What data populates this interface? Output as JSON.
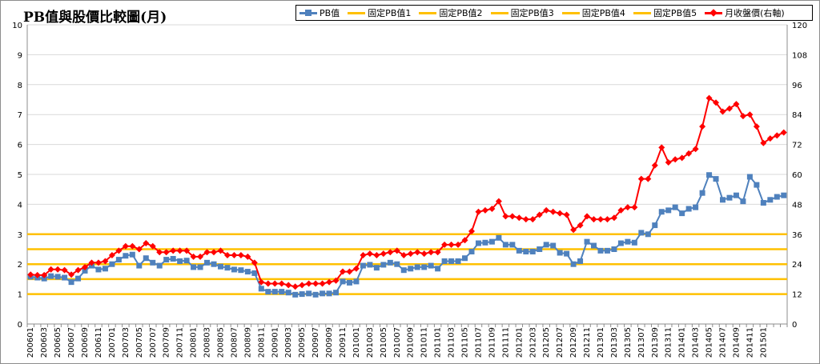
{
  "title": "PB值與股價比較圖(月)",
  "colors": {
    "pb": "#4f81bd",
    "price": "#ff0000",
    "fixed": "#ffc000",
    "grid": "#d9d9d9"
  },
  "legend": [
    {
      "label": "PB值",
      "kind": "line-square",
      "color": "#4f81bd"
    },
    {
      "label": "固定PB值1",
      "kind": "line",
      "color": "#ffc000"
    },
    {
      "label": "固定PB值2",
      "kind": "line",
      "color": "#ffc000"
    },
    {
      "label": "固定PB值3",
      "kind": "line",
      "color": "#ffc000"
    },
    {
      "label": "固定PB值4",
      "kind": "line",
      "color": "#ffc000"
    },
    {
      "label": "固定PB值5",
      "kind": "line",
      "color": "#ffc000"
    },
    {
      "label": "月收盤價(右軸)",
      "kind": "line-diamond",
      "color": "#ff0000"
    }
  ],
  "chart_data": {
    "type": "line",
    "title": "PB值與股價比較圖(月)",
    "y_left": {
      "min": 0,
      "max": 10,
      "ticks": [
        "0",
        "1",
        "2",
        "3",
        "4",
        "5",
        "6",
        "7",
        "8",
        "9",
        "10"
      ]
    },
    "y_right": {
      "min": 0,
      "max": 120,
      "ticks": [
        "0",
        "12",
        "24",
        "36",
        "48",
        "60",
        "72",
        "84",
        "96",
        "108",
        "120"
      ]
    },
    "x_tick_labels": [
      "200601",
      "200603",
      "200605",
      "200607",
      "200609",
      "200611",
      "200701",
      "200703",
      "200705",
      "200707",
      "200709",
      "200711",
      "200801",
      "200803",
      "200805",
      "200807",
      "200809",
      "200811",
      "200901",
      "200903",
      "200905",
      "200907",
      "200909",
      "200911",
      "201001",
      "201003",
      "201005",
      "201007",
      "201009",
      "201011",
      "201101",
      "201103",
      "201105",
      "201107",
      "201109",
      "201111",
      "201201",
      "201203",
      "201205",
      "201207",
      "201209",
      "201211",
      "201301",
      "201303",
      "201305",
      "201307",
      "201309",
      "201311",
      "201401",
      "201403",
      "201405",
      "201407",
      "201409",
      "201411",
      "201501"
    ],
    "series": [
      {
        "name": "PB值",
        "axis": "left",
        "values": [
          1.58,
          1.55,
          1.52,
          1.6,
          1.58,
          1.55,
          1.4,
          1.52,
          1.78,
          1.95,
          1.82,
          1.85,
          2.0,
          2.15,
          2.28,
          2.32,
          1.95,
          2.2,
          2.05,
          1.95,
          2.15,
          2.18,
          2.1,
          2.12,
          1.9,
          1.9,
          2.05,
          2.0,
          1.92,
          1.88,
          1.82,
          1.8,
          1.75,
          1.7,
          1.18,
          1.08,
          1.08,
          1.08,
          1.05,
          0.98,
          1.0,
          1.02,
          0.98,
          1.02,
          1.02,
          1.05,
          1.42,
          1.38,
          1.42,
          1.95,
          1.98,
          1.88,
          1.98,
          2.05,
          2.0,
          1.8,
          1.85,
          1.9,
          1.9,
          1.95,
          1.85,
          2.1,
          2.1,
          2.1,
          2.2,
          2.42,
          2.7,
          2.72,
          2.75,
          2.88,
          2.65,
          2.65,
          2.45,
          2.42,
          2.42,
          2.5,
          2.65,
          2.62,
          2.38,
          2.35,
          2.0,
          2.1,
          2.75,
          2.62,
          2.45,
          2.45,
          2.5,
          2.7,
          2.75,
          2.72,
          3.05,
          3.0,
          3.3,
          3.75,
          3.8,
          3.9,
          3.7,
          3.85,
          3.9,
          4.38,
          4.98,
          4.85,
          4.15,
          4.22,
          4.3,
          4.1,
          4.92,
          4.65,
          4.05,
          4.15,
          4.25,
          4.3
        ]
      },
      {
        "name": "固定PB值1",
        "axis": "left",
        "constant": 1.0
      },
      {
        "name": "固定PB值2",
        "axis": "left",
        "constant": 1.5
      },
      {
        "name": "固定PB值3",
        "axis": "left",
        "constant": 2.0
      },
      {
        "name": "固定PB值4",
        "axis": "left",
        "constant": 2.5
      },
      {
        "name": "固定PB值5",
        "axis": "left",
        "constant": 3.0
      },
      {
        "name": "月收盤價(右軸)",
        "axis": "right",
        "values": [
          19.8,
          19.6,
          19.6,
          21.9,
          21.9,
          21.6,
          19.8,
          21.6,
          22.8,
          24.6,
          24.6,
          25.2,
          27.6,
          29.4,
          31.2,
          31.2,
          30.0,
          32.4,
          31.2,
          28.8,
          28.8,
          29.4,
          29.4,
          29.4,
          27.0,
          27.0,
          28.8,
          28.8,
          29.4,
          27.6,
          27.6,
          27.6,
          27.0,
          24.6,
          16.8,
          16.2,
          16.2,
          16.2,
          15.6,
          15.0,
          15.6,
          16.2,
          16.2,
          16.2,
          16.8,
          17.4,
          21.0,
          21.0,
          22.2,
          27.6,
          28.2,
          27.6,
          28.2,
          28.8,
          29.4,
          27.6,
          28.2,
          28.8,
          28.2,
          28.8,
          28.8,
          31.8,
          31.8,
          31.8,
          33.6,
          37.2,
          45.0,
          45.6,
          46.2,
          49.2,
          43.2,
          43.2,
          42.6,
          42.0,
          42.0,
          43.8,
          45.6,
          45.0,
          44.4,
          43.8,
          37.8,
          39.6,
          43.2,
          42.0,
          42.0,
          42.0,
          42.6,
          45.6,
          46.8,
          46.8,
          58.2,
          58.2,
          63.6,
          70.8,
          64.8,
          66.0,
          66.6,
          68.4,
          70.2,
          79.2,
          90.6,
          88.8,
          85.2,
          86.4,
          88.2,
          83.4,
          84.0,
          79.2,
          72.6,
          74.4,
          75.6,
          76.8
        ]
      }
    ],
    "grid": true,
    "legend_position": "top"
  }
}
